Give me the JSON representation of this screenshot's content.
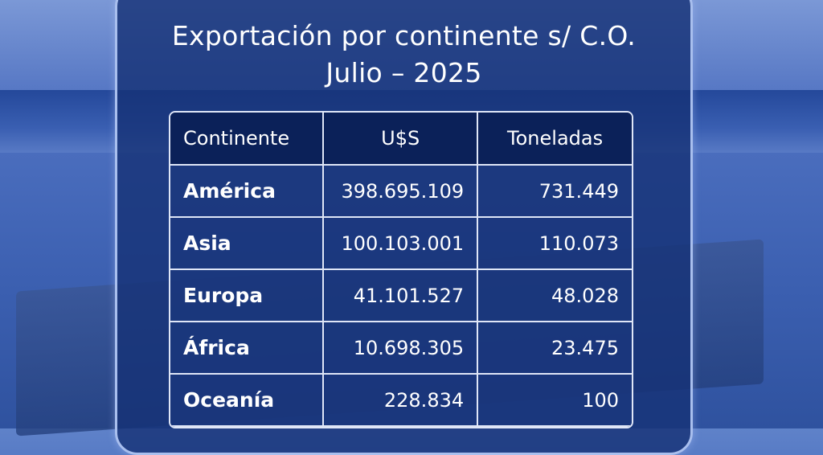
{
  "title": {
    "line1": "Exportación por continente s/ C.O.",
    "line2": "Julio – 2025"
  },
  "table": {
    "headers": [
      "Continente",
      "U$S",
      "Toneladas"
    ],
    "rows": [
      {
        "continent": "América",
        "usd": "398.695.109",
        "tons": "731.449"
      },
      {
        "continent": "Asia",
        "usd": "100.103.001",
        "tons": "110.073"
      },
      {
        "continent": "Europa",
        "usd": "41.101.527",
        "tons": "48.028"
      },
      {
        "continent": "África",
        "usd": "10.698.305",
        "tons": "23.475"
      },
      {
        "continent": "Oceanía",
        "usd": "228.834",
        "tons": "100"
      }
    ]
  },
  "colors": {
    "panel": "#163276",
    "header": "#0b2159",
    "border": "#a9bfee"
  }
}
